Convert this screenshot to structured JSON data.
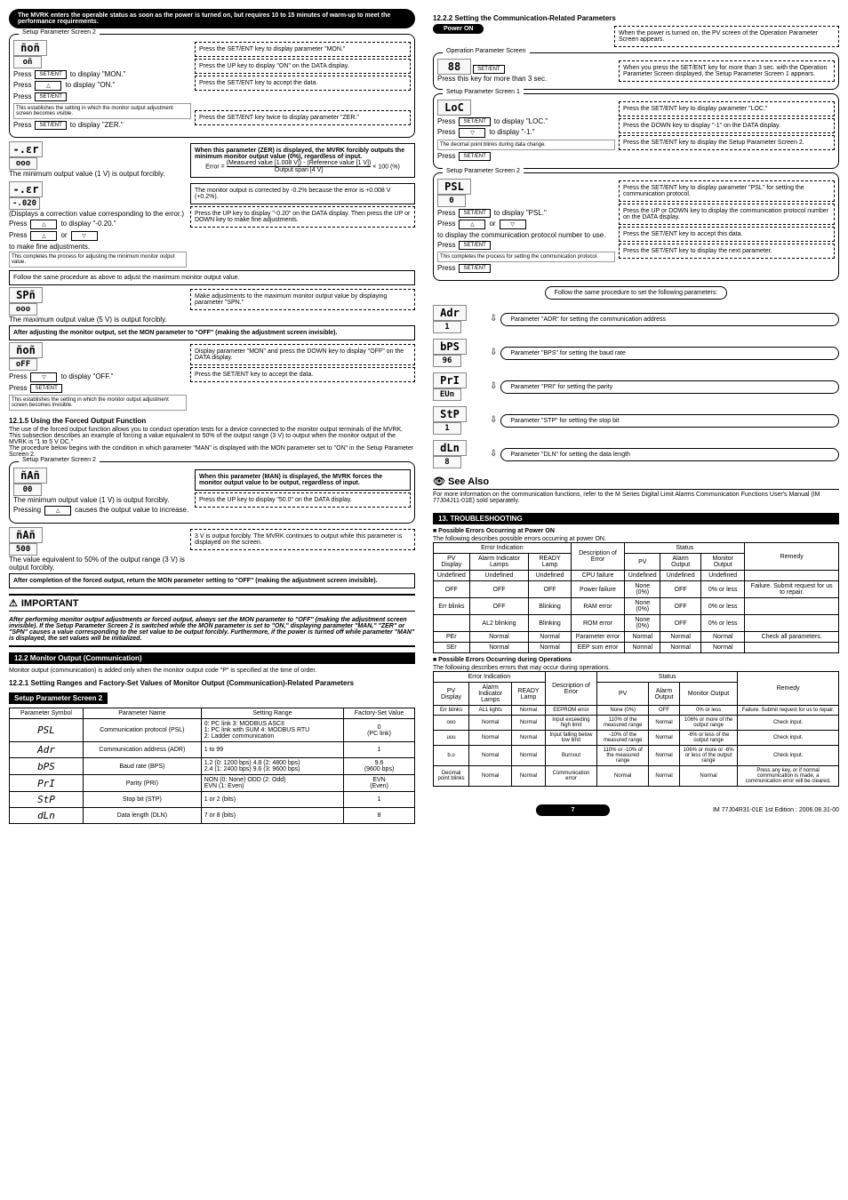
{
  "left": {
    "top_banner": "The MVRK enters the operable status as soon as the power is turned on, but requires 10 to 15 minutes of warm-up to meet the performance requirements.",
    "screen2_title": "Setup Parameter Screen 2",
    "mon_row": {
      "lcd_top": "ñoñ",
      "lcd_bot": "oñ",
      "press1": "Press",
      "btn1": "SET/ENT",
      "desc1a": "to display \"MON.\"",
      "instr1": "Press the SET/ENT key to display parameter \"MON.\"",
      "press2": "Press",
      "btn2": "△",
      "desc2": "to display \"ON.\"",
      "instr2": "Press the UP key to display \"ON\" on the DATA display.",
      "press3": "Press",
      "btn3": "SET/ENT",
      "instr3": "Press the SET/ENT key to accept the data.",
      "note1": "This establishes the setting in which the monitor output adjustment screen becomes visible.",
      "press4": "Press",
      "btn4": "SET/ENT",
      "desc4": "to display \"ZER.\"",
      "instr4": "Press the SET/ENT key twice to display parameter \"ZER.\""
    },
    "zer_row": {
      "lcd": "-.εr",
      "lcd2": "ooo",
      "label": "The minimum output value (1 V) is output forcibly.",
      "box_title": "When this parameter (ZER) is displayed, the MVRK forcibly outputs the minimum monitor output value (0%), regardless of input.",
      "formula_label": "Error =",
      "formula_top": "(Measured value [1.008 V]) - (Reference value [1 V])",
      "formula_bot": "Output span [4 V]",
      "formula_end": "× 100 (%)"
    },
    "corr_row": {
      "lcd": "-.εr",
      "lcd2": "-.020",
      "label": "(Displays a correction value corresponding to the error.)",
      "press1": "Press",
      "btn1": "△",
      "desc1": "to display \"-0.20.\"",
      "press2": "Press",
      "btn2a": "△",
      "or": "or",
      "btn2b": "▽",
      "desc2": "to make fine adjustments.",
      "note": "This completes the process for adjusting the minimum monitor output value.",
      "box1": "The monitor output is corrected by -0.2% because the error is +0.008 V (+0.2%).",
      "box2": "Press the UP key to display \"-0.20\" on the DATA display. Then press the UP or DOWN key to make fine adjustments."
    },
    "follow_max": "Follow the same procedure as above to adjust the maximum monitor output value.",
    "spn_row": {
      "lcd": "SPñ",
      "lcd2": "ooo",
      "label": "The maximum output value (5 V) is output forcibly.",
      "instr": "Make adjustments to the maximum monitor output value by displaying parameter \"SPN.\""
    },
    "after_adjust": "After adjusting the monitor output, set the MON parameter to \"OFF\" (making the adjustment screen invisible).",
    "off_row": {
      "lcd": "ñoñ",
      "lcd2": "oFF",
      "press1": "Press",
      "btn1": "▽",
      "desc1": "to display \"OFF.\"",
      "instr1": "Display parameter \"MON\" and press the DOWN key to display \"OFF\" on the DATA display.",
      "press2": "Press",
      "btn2": "SET/ENT",
      "instr2": "Press the SET/ENT key to accept the data.",
      "note": "This establishes the setting in which the monitor output adjustment screen becomes invisible."
    },
    "sec_1215_h": "12.1.5   Using the Forced Output Function",
    "sec_1215_p": "The use of the forced output function allows you to conduct operation tests for a device connected to the monitor output terminals of the MVRK.\nThis subsection describes an example of forcing a value equivalent to 50% of the output range (3 V) to output when the monitor output of the MVRK is \"1 to 5 V DC.\"\nThe procedure below begins with the condition in which parameter \"MAN\" is displayed with the MON parameter set to \"ON\" in the Setup Parameter Screen 2.",
    "man_row": {
      "lcd": "ñAñ",
      "lcd2": "00",
      "label": "The minimum output value (1 V) is output forcibly.",
      "press": "Pressing",
      "btn": "△",
      "desc": "causes the output value to increase.",
      "box_title": "When this parameter (MAN) is displayed, the MVRK forces the monitor output value to be output, regardless of input.",
      "instr": "Press the UP key to display \"50.0\" on the DATA display."
    },
    "man50_row": {
      "lcd": "ñAñ",
      "lcd2": "500",
      "label": "The value equivalent to 50% of the output range (3 V) is output forcibly.",
      "instr": "3 V is output forcibly. The MVRK continues to output while this parameter is displayed on the screen."
    },
    "after_forced": "After completion of the forced output, return the MON parameter setting to \"OFF\" (making the adjustment screen invisible).",
    "important_h": "IMPORTANT",
    "important_p": "After performing monitor output adjustments or forced output, always set the MON parameter to \"OFF\" (making the adjustment screen invisible). If the Setup Parameter Screen 2 is switched while the MON parameter is set to \"ON,\" displaying parameter \"MAN,\" \"ZER\" or \"SPN\" causes a value corresponding to the set value to be output forcibly. Furthermore, if the power is turned off while parameter \"MAN\" is displayed, the set values will be initialized.",
    "sec_122_h": "12.2 Monitor Output (Communication)",
    "sec_122_p": "Monitor output (communication) is added only when the monitor output code \"P\" is specified at the time of order.",
    "sec_1221_h": "12.2.1   Setting Ranges and Factory-Set Values of Monitor Output (Communication)-Related Parameters",
    "table1_title": "Setup Parameter Screen 2",
    "table1": {
      "head": [
        "Parameter Symbol",
        "Parameter Name",
        "Setting Range",
        "Factory-Set Value"
      ],
      "rows": [
        {
          "sym": "PSL",
          "name": "Communication protocol (PSL)",
          "range": "0: PC link           3: MODBUS ASCII\n1: PC link with SUM   4: MODBUS RTU\n2: Ladder communication",
          "val": "0\n(PC link)"
        },
        {
          "sym": "Adr",
          "name": "Communication address (ADR)",
          "range": "1 to 99",
          "val": "1"
        },
        {
          "sym": "bPS",
          "name": "Baud rate (BPS)",
          "range": "1.2 (0: 1200 bps)    4.8 (2: 4800 bps)\n2.4 (1: 2400 bps)    9.6 (3: 9600 bps)",
          "val": "9.6\n(9600 bps)"
        },
        {
          "sym": "PrI",
          "name": "Parity (PRI)",
          "range": "NON (0: None)    ODD (2: Odd)\nEVN (1: Even)",
          "val": "EVN\n(Even)"
        },
        {
          "sym": "StP",
          "name": "Stop bit (STP)",
          "range": "1 or 2 (bits)",
          "val": "1"
        },
        {
          "sym": "dLn",
          "name": "Data length (DLN)",
          "range": "7 or 8 (bits)",
          "val": "8"
        }
      ]
    }
  },
  "right": {
    "sec_1222_h": "12.2.2   Setting the Communication-Related Parameters",
    "power_on": "Power ON",
    "power_desc": "When the power is turned on, the PV screen of the Operation Parameter Screen appears.",
    "op_screen": "Operation Parameter Screen",
    "hold_row": {
      "lcd": "88",
      "press": "Press this key for more than 3 sec.",
      "btn": "SET/ENT",
      "desc": "When you press the SET/ENT key for more than 3 sec. with the Operation Parameter Screen displayed, the Setup Parameter Screen 1 appears."
    },
    "screen1": "Setup Parameter Screen 1",
    "loc_row": {
      "lcd": "LoC",
      "press1": "Press",
      "btn1": "SET/ENT",
      "desc1": "to display \"LOC.\"",
      "instr1": "Press the SET/ENT key to display parameter \"LOC.\"",
      "press2": "Press",
      "btn2": "▽",
      "desc2": "to display \"-1.\"",
      "instr2": "Press the DOWN key to display \"-1\" on the DATA display.",
      "note": "The decimal point blinks during data change.",
      "press3": "Press",
      "btn3": "SET/ENT",
      "instr3": "Press the SET/ENT key to display the Setup Parameter Screen 2."
    },
    "screen2": "Setup Parameter Screen 2",
    "psl_row": {
      "lcd": "PSL",
      "lcd2": "0",
      "press1": "Press",
      "btn1": "SET/ENT",
      "desc1": "to display \"PSL.\"",
      "instr1": "Press the SET/ENT key to display parameter \"PSL\" for setting the communication protocol.",
      "press2": "Press",
      "btn2a": "△",
      "or": "or",
      "btn2b": "▽",
      "desc2": "to display the communication protocol number to use.",
      "instr2": "Press the UP or DOWN key to display the communication protocol number on the DATA display.",
      "press3": "Press",
      "btn3": "SET/ENT",
      "instr3": "Press the SET/ENT key to accept this data.",
      "note": "This completes the process for setting the communication protocol.",
      "press4": "Press",
      "btn4": "SET/ENT",
      "instr4": "Press the SET/ENT key to display the next parameter."
    },
    "follow_same": "Follow the same procedure to set the following parameters:",
    "params": [
      {
        "lcd": "Adr",
        "sub": "1",
        "desc": "Parameter \"ADR\" for setting the communication address"
      },
      {
        "lcd": "bPS",
        "sub": "96",
        "desc": "Parameter \"BPS\" for setting the baud rate"
      },
      {
        "lcd": "PrI",
        "sub": "EUn",
        "desc": "Parameter \"PRI\" for setting the parity"
      },
      {
        "lcd": "StP",
        "sub": "1",
        "desc": "Parameter \"STP\" for setting the stop bit"
      },
      {
        "lcd": "dLn",
        "sub": "8",
        "desc": "Parameter \"DLN\" for setting the data length"
      }
    ],
    "seealso_h": "See Also",
    "seealso_p": "For more information on the communication functions, refer to the M Series Digital Limit Alarms Communication Functions User's Manual (IM 77J04J11-01E) sold separately.",
    "sec_13_h": "13. TROUBLESHOOTING",
    "err_power_h": "■ Possible Errors Occurring at Power ON",
    "err_power_p": "The following describes possible errors occurring at power ON.",
    "table2": {
      "head_top": [
        "Error Indication",
        "Description of Error",
        "Status",
        "Remedy"
      ],
      "head_sub": [
        "PV Display",
        "Alarm Indicator Lamps",
        "READY Lamp",
        "",
        "PV",
        "Alarm Output",
        "Monitor Output",
        ""
      ],
      "rows": [
        [
          "Undefined",
          "Undefined",
          "Undefined",
          "CPU failure",
          "Undefined",
          "Undefined",
          "Undefined",
          ""
        ],
        [
          "OFF",
          "OFF",
          "OFF",
          "Power failure",
          "None (0%)",
          "OFF",
          "0% or less",
          "Failure. Submit request for us to repair."
        ],
        [
          "Err blinks",
          "OFF",
          "Blinking",
          "RAM error",
          "None (0%)",
          "OFF",
          "0% or less",
          ""
        ],
        [
          "",
          "AL2 blinking",
          "Blinking",
          "ROM error",
          "None (0%)",
          "OFF",
          "0% or less",
          ""
        ],
        [
          "PEr",
          "Normal",
          "Normal",
          "Parameter error",
          "Normal",
          "Normal",
          "Normal",
          "Check all parameters."
        ],
        [
          "SEr",
          "Normal",
          "Normal",
          "EEP sum error",
          "Normal",
          "Normal",
          "Normal",
          ""
        ]
      ]
    },
    "err_ops_h": "■ Possible Errors Occurring during Operations",
    "err_ops_p": "The following describes errors that may occur during operations.",
    "table3": {
      "head_top": [
        "Error Indication",
        "Description of Error",
        "Status",
        "Remedy"
      ],
      "head_sub": [
        "PV Display",
        "Alarm Indicator Lamps",
        "READY Lamp",
        "",
        "PV",
        "Alarm Output",
        "Monitor Output",
        ""
      ],
      "rows": [
        [
          "Err blinks",
          "AL1 lights",
          "Normal",
          "EEPROM error",
          "None (0%)",
          "OFF",
          "0% or less",
          "Failure. Submit request for us to repair."
        ],
        [
          "ooo",
          "Normal",
          "Normal",
          "Input exceeding high limit",
          "110% of the measured range",
          "Normal",
          "106% or more of the output range",
          "Check input."
        ],
        [
          "uuu",
          "Normal",
          "Normal",
          "Input falling below low limit",
          "-10% of the measured range",
          "Normal",
          "-6% or less of the output range",
          "Check input."
        ],
        [
          "b.o",
          "Normal",
          "Normal",
          "Burnout",
          "110% or -10% of the measured range",
          "Normal",
          "106% or more or -6% or less of the output range",
          "Check input."
        ],
        [
          "Decimal point blinks",
          "Normal",
          "Normal",
          "Communication error",
          "Normal",
          "Normal",
          "Normal",
          "Press any key, or if normal communication is made, a communication error will be cleared."
        ]
      ]
    }
  },
  "footer": {
    "page": "7",
    "doc": "IM 77J04R31-01E  1st Edition : 2006.08.31-00"
  }
}
